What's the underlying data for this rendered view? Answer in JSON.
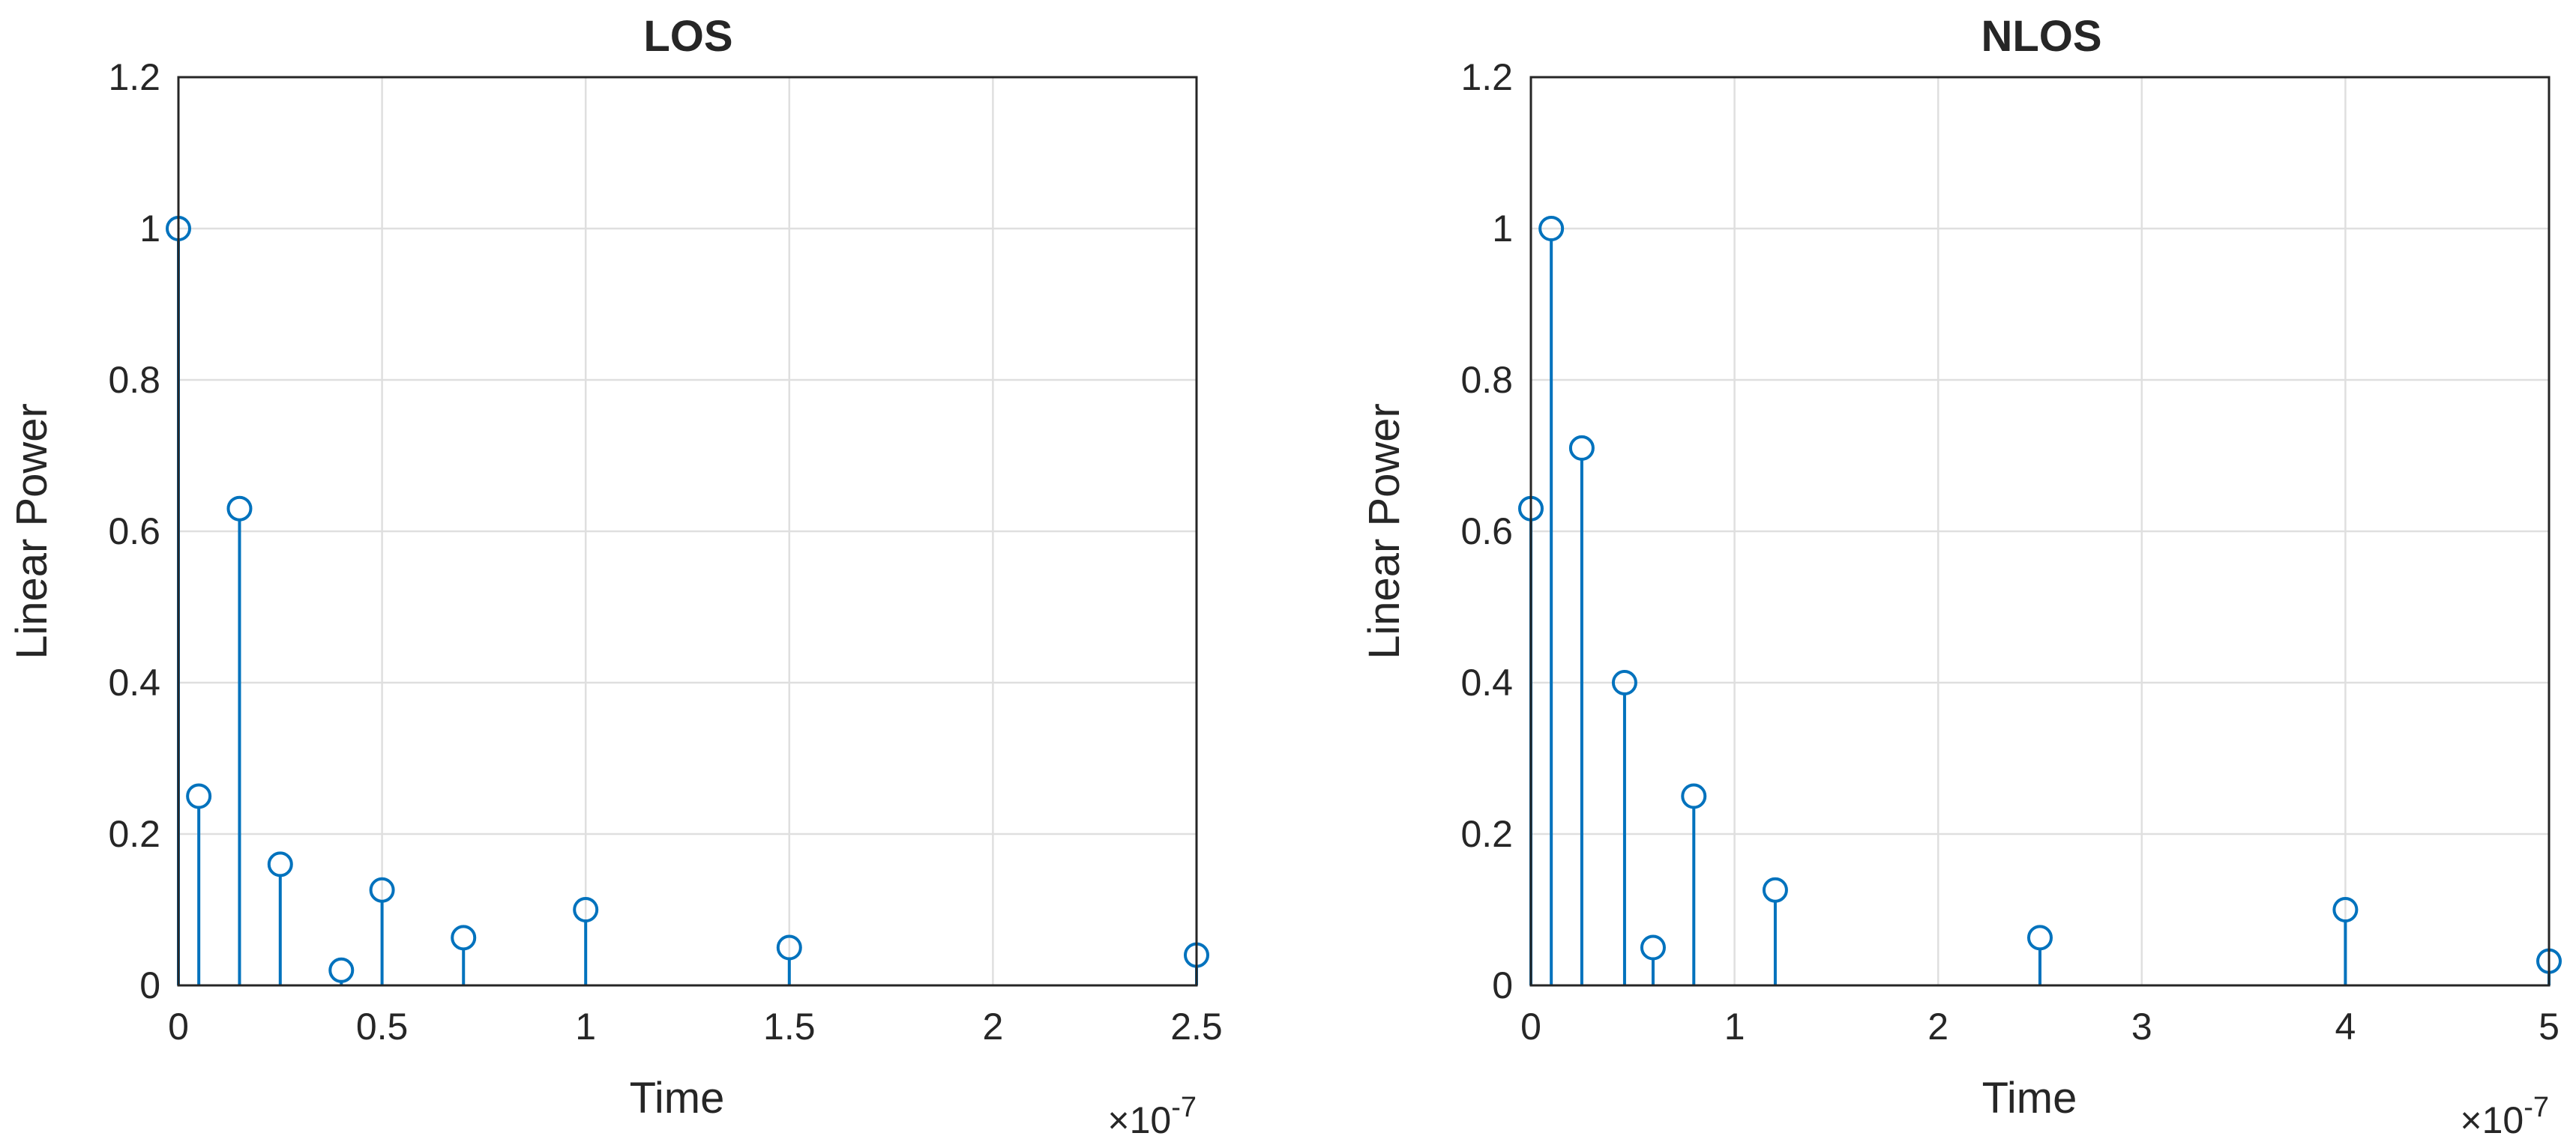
{
  "chart_data": [
    {
      "type": "stem",
      "title": "LOS",
      "xlabel": "Time",
      "ylabel": "Linear Power",
      "x_exponent_label": "×10",
      "x_exponent": "-7",
      "xlim": [
        0,
        2.5
      ],
      "ylim": [
        0,
        1.2
      ],
      "xticks": [
        "0",
        "0.5",
        "1",
        "1.5",
        "2",
        "2.5"
      ],
      "yticks": [
        "0",
        "0.2",
        "0.4",
        "0.6",
        "0.8",
        "1",
        "1.2"
      ],
      "grid": true,
      "x": [
        0,
        0.05,
        0.15,
        0.25,
        0.4,
        0.5,
        0.7,
        1.0,
        1.5,
        2.5
      ],
      "y": [
        1.0,
        0.25,
        0.63,
        0.16,
        0.02,
        0.126,
        0.063,
        0.1,
        0.05,
        0.04
      ]
    },
    {
      "type": "stem",
      "title": "NLOS",
      "xlabel": "Time",
      "ylabel": "Linear Power",
      "x_exponent_label": "×10",
      "x_exponent": "-7",
      "xlim": [
        0,
        5
      ],
      "ylim": [
        0,
        1.2
      ],
      "xticks": [
        "0",
        "1",
        "2",
        "3",
        "4",
        "5"
      ],
      "yticks": [
        "0",
        "0.2",
        "0.4",
        "0.6",
        "0.8",
        "1",
        "1.2"
      ],
      "grid": true,
      "x": [
        0,
        0.1,
        0.25,
        0.46,
        0.6,
        0.8,
        1.2,
        2.5,
        4.0,
        5.0
      ],
      "y": [
        0.63,
        1.0,
        0.71,
        0.4,
        0.05,
        0.25,
        0.126,
        0.063,
        0.1,
        0.032
      ]
    }
  ],
  "colors": {
    "stem": "#0072bd",
    "grid": "#dfdfdf",
    "axis": "#262626"
  }
}
